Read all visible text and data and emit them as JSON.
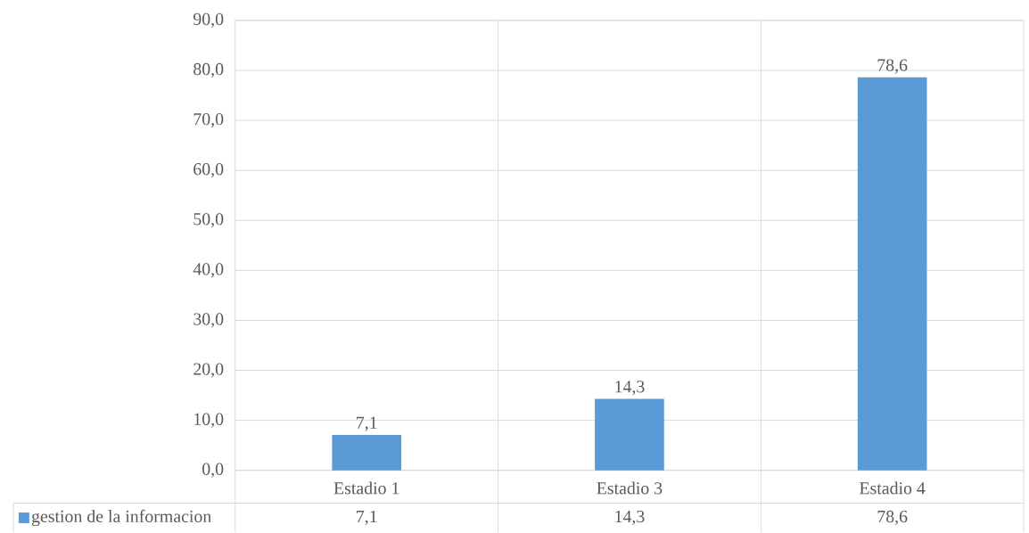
{
  "chart_data": {
    "type": "bar",
    "categories": [
      "Estadio 1",
      "Estadio 3",
      "Estadio 4"
    ],
    "series": [
      {
        "name": "gestion de la informacion",
        "color": "#5b9bd5",
        "values": [
          7.1,
          14.3,
          78.6
        ],
        "value_labels": [
          "7,1",
          "14,3",
          "78,6"
        ]
      }
    ],
    "ylim": [
      0,
      90
    ],
    "yticks": [
      {
        "value": 0,
        "label": "0,0"
      },
      {
        "value": 10,
        "label": "10,0"
      },
      {
        "value": 20,
        "label": "20,0"
      },
      {
        "value": 30,
        "label": "30,0"
      },
      {
        "value": 40,
        "label": "40,0"
      },
      {
        "value": 50,
        "label": "50,0"
      },
      {
        "value": 60,
        "label": "60,0"
      },
      {
        "value": 70,
        "label": "70,0"
      },
      {
        "value": 80,
        "label": "80,0"
      },
      {
        "value": 90,
        "label": "90,0"
      }
    ],
    "grid": true,
    "legend": "bottom"
  }
}
